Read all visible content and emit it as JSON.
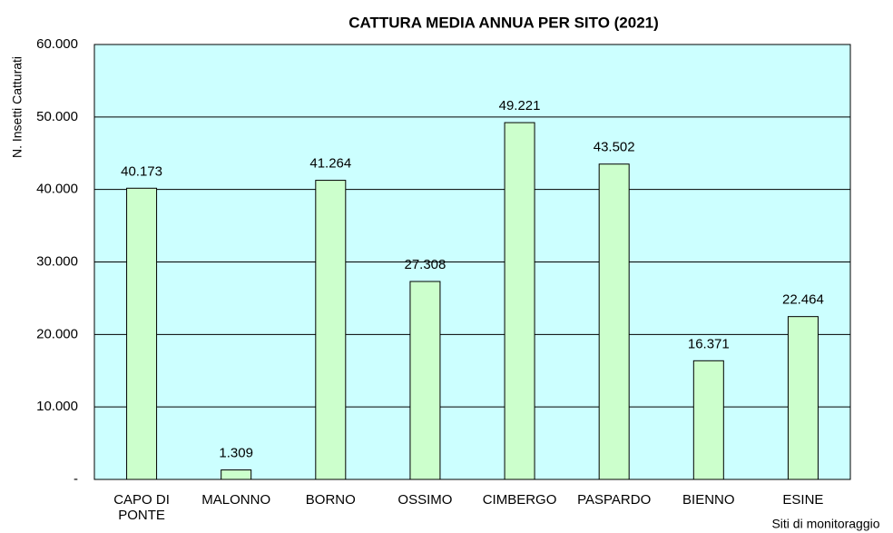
{
  "chart_data": {
    "type": "bar",
    "title": "CATTURA MEDIA ANNUA PER SITO (2021)",
    "y_label": "N. Insetti Catturati",
    "x_label": "Siti di monitoraggio",
    "categories": [
      "CAPO DI PONTE",
      "MALONNO",
      "BORNO",
      "OSSIMO",
      "CIMBERGO",
      "PASPARDO",
      "BIENNO",
      "ESINE"
    ],
    "values": [
      40173,
      1309,
      41264,
      27308,
      49221,
      43502,
      16371,
      22464
    ],
    "value_labels": [
      "40.173",
      "1.309",
      "41.264",
      "27.308",
      "49.221",
      "43.502",
      "16.371",
      "22.464"
    ],
    "color": "#ccffcc",
    "background": "#ccffff",
    "ylim": [
      0,
      60000
    ],
    "yticks": [
      {
        "value": 0,
        "label": "-"
      },
      {
        "value": 10000,
        "label": "10.000"
      },
      {
        "value": 20000,
        "label": "20.000"
      },
      {
        "value": 30000,
        "label": "30.000"
      },
      {
        "value": 40000,
        "label": "40.000"
      },
      {
        "value": 50000,
        "label": "50.000"
      },
      {
        "value": 60000,
        "label": "60.000"
      }
    ],
    "grid": true
  }
}
